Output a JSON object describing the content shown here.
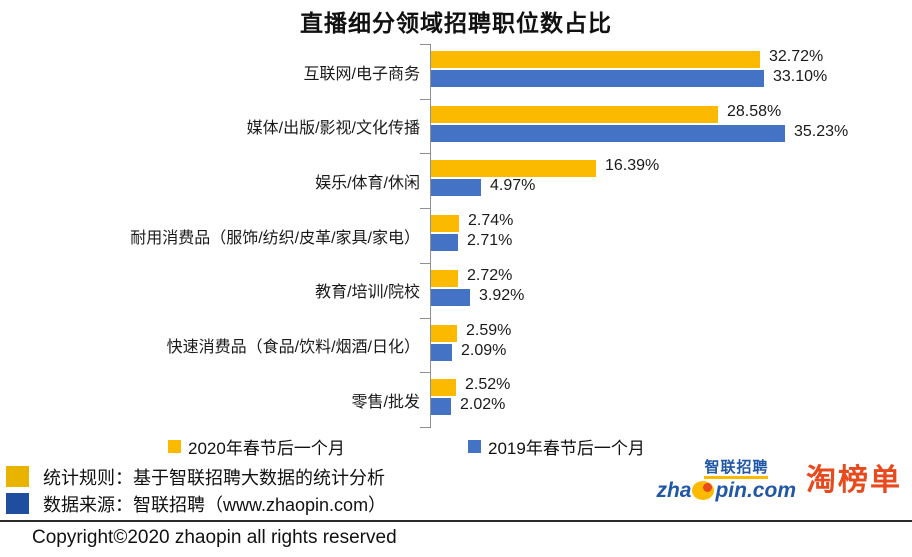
{
  "title": "直播细分领域招聘职位数占比",
  "chart_data": {
    "type": "bar",
    "orientation": "horizontal",
    "title": "直播细分领域招聘职位数占比",
    "categories": [
      "互联网/电子商务",
      "媒体/出版/影视/文化传播",
      "娱乐/体育/休闲",
      "耐用消费品（服饰/纺织/皮革/家具/家电）",
      "教育/培训/院校",
      "快速消费品（食品/饮料/烟酒/日化）",
      "零售/批发"
    ],
    "series": [
      {
        "name": "2020年春节后一个月",
        "color": "#FBBA00",
        "values": [
          32.72,
          28.58,
          16.39,
          2.74,
          2.72,
          2.59,
          2.52
        ]
      },
      {
        "name": "2019年春节后一个月",
        "color": "#4472C4",
        "values": [
          33.1,
          35.23,
          4.97,
          2.71,
          3.92,
          2.09,
          2.02
        ]
      }
    ],
    "value_suffix": "%",
    "xlim": [
      0,
      36
    ],
    "grid": false,
    "legend_position": "bottom"
  },
  "notes": [
    {
      "color": "#E9B400",
      "text": "统计规则：基于智联招聘大数据的统计分析"
    },
    {
      "color": "#1F4E9E",
      "text": "数据来源：智联招聘（www.zhaopin.com）"
    }
  ],
  "logos": {
    "zhaopin_cn": "智联招聘",
    "zhaopin_en_left": "zha",
    "zhaopin_en_right": "pin.com",
    "taobangdan": "淘榜单"
  },
  "footer": {
    "copyright": "Copyright©2020 zhaopin all rights reserved"
  }
}
